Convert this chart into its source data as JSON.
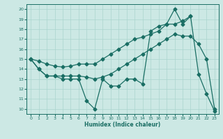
{
  "bg_color": "#cce8e4",
  "line_color": "#1a6e64",
  "grid_color": "#aad4ce",
  "xlabel": "Humidex (Indice chaleur)",
  "ylim": [
    9.5,
    20.5
  ],
  "xlim": [
    -0.5,
    23.5
  ],
  "yticks": [
    10,
    11,
    12,
    13,
    14,
    15,
    16,
    17,
    18,
    19,
    20
  ],
  "xticks": [
    0,
    1,
    2,
    3,
    4,
    5,
    6,
    7,
    8,
    9,
    10,
    11,
    12,
    13,
    14,
    15,
    16,
    17,
    18,
    19,
    20,
    21,
    22,
    23
  ],
  "line1_x": [
    0,
    1,
    2,
    3,
    4,
    5,
    6,
    7,
    8,
    9,
    10,
    11,
    12,
    13,
    14,
    15,
    16,
    17,
    18,
    19,
    20,
    21,
    22,
    23
  ],
  "line1_y": [
    15.0,
    14.0,
    13.3,
    13.3,
    13.0,
    13.0,
    13.0,
    10.8,
    10.0,
    13.0,
    12.3,
    12.3,
    13.0,
    13.0,
    12.5,
    17.8,
    18.3,
    18.5,
    20.0,
    18.5,
    19.3,
    13.5,
    11.5,
    9.8
  ],
  "line2_x": [
    0,
    1,
    2,
    3,
    4,
    5,
    6,
    7,
    8,
    9,
    10,
    11,
    12,
    13,
    14,
    15,
    16,
    17,
    18,
    19,
    20,
    21,
    22,
    23
  ],
  "line2_y": [
    15.0,
    14.0,
    13.3,
    13.3,
    13.3,
    13.3,
    13.3,
    13.2,
    13.0,
    13.2,
    13.5,
    14.0,
    14.5,
    15.0,
    15.5,
    16.0,
    16.5,
    17.0,
    17.5,
    17.3,
    17.3,
    16.5,
    15.0,
    10.0
  ],
  "line3_x": [
    0,
    1,
    2,
    3,
    4,
    5,
    6,
    7,
    8,
    9,
    10,
    11,
    12,
    13,
    14,
    15,
    16,
    17,
    18,
    19,
    20
  ],
  "line3_y": [
    15.0,
    14.8,
    14.5,
    14.3,
    14.2,
    14.3,
    14.5,
    14.5,
    14.5,
    15.0,
    15.5,
    16.0,
    16.5,
    17.0,
    17.2,
    17.5,
    17.8,
    18.5,
    18.5,
    18.8,
    19.3
  ]
}
